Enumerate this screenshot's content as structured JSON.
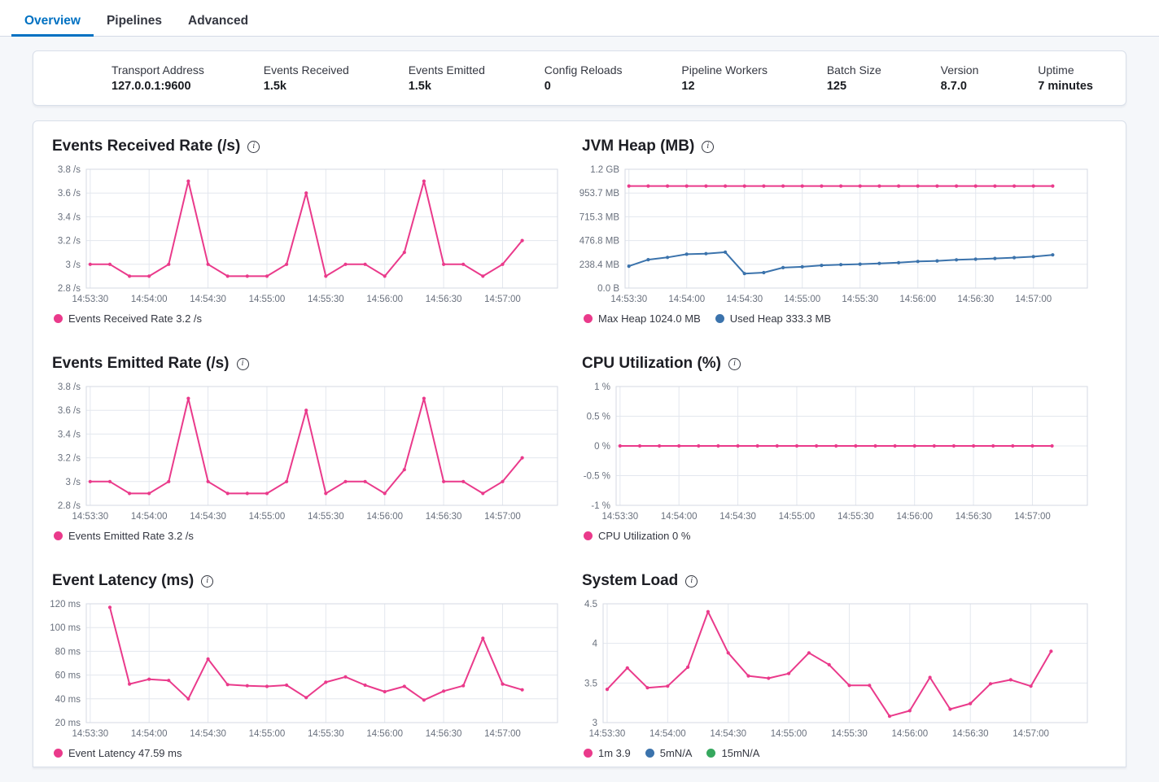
{
  "tabs": [
    {
      "label": "Overview",
      "active": true
    },
    {
      "label": "Pipelines",
      "active": false
    },
    {
      "label": "Advanced",
      "active": false
    }
  ],
  "summary": {
    "items": [
      {
        "label": "Transport Address",
        "value": "127.0.0.1:9600"
      },
      {
        "label": "Events Received",
        "value": "1.5k"
      },
      {
        "label": "Events Emitted",
        "value": "1.5k"
      },
      {
        "label": "Config Reloads",
        "value": "0"
      },
      {
        "label": "Pipeline Workers",
        "value": "12"
      },
      {
        "label": "Batch Size",
        "value": "125"
      },
      {
        "label": "Version",
        "value": "8.7.0"
      },
      {
        "label": "Uptime",
        "value": "7 minutes"
      }
    ]
  },
  "colors": {
    "accent_blue": "#0071c2",
    "line_pink": "#ea3a8b",
    "line_blue": "#3b73ac",
    "dot_green": "#36a85e",
    "grid": "#e3e7ee",
    "plot_border": "#d4dae3"
  },
  "chart_data": [
    {
      "type": "line",
      "title": "Events Received Rate (/s)",
      "x_ticks": [
        "14:53:30",
        "14:54:00",
        "14:54:30",
        "14:55:00",
        "14:55:30",
        "14:56:00",
        "14:56:30",
        "14:57:00"
      ],
      "ylim": [
        2.8,
        3.8
      ],
      "y_tick_values": [
        3.8,
        3.6,
        3.4,
        3.2,
        3.0,
        2.8
      ],
      "y_tick_labels": [
        "3.8 /s",
        "3.6 /s",
        "3.4 /s",
        "3.2 /s",
        "3 /s",
        "2.8 /s"
      ],
      "series": [
        {
          "name": "Events Received Rate",
          "color": "#ea3a8b",
          "start_s": 0,
          "step_s": 10,
          "values": [
            3.0,
            3.0,
            2.9,
            2.9,
            3.0,
            3.7,
            3.0,
            2.9,
            2.9,
            2.9,
            3.0,
            3.6,
            2.9,
            3.0,
            3.0,
            2.9,
            3.1,
            3.7,
            3.0,
            3.0,
            2.9,
            3.0,
            3.2
          ]
        }
      ],
      "legend": [
        {
          "label": "Events Received Rate 3.2 /s",
          "color": "#ea3a8b"
        }
      ]
    },
    {
      "type": "line",
      "title": "JVM Heap (MB)",
      "x_ticks": [
        "14:53:30",
        "14:54:00",
        "14:54:30",
        "14:55:00",
        "14:55:30",
        "14:56:00",
        "14:56:30",
        "14:57:00"
      ],
      "ylim": [
        0,
        1192.1
      ],
      "y_tick_values": [
        1192.1,
        953.7,
        715.3,
        476.8,
        238.4,
        0
      ],
      "y_tick_labels": [
        "1.2 GB",
        "953.7 MB",
        "715.3 MB",
        "476.8 MB",
        "238.4 MB",
        "0.0 B"
      ],
      "series": [
        {
          "name": "Max Heap",
          "color": "#ea3a8b",
          "start_s": 0,
          "step_s": 10,
          "values": [
            1024,
            1024,
            1024,
            1024,
            1024,
            1024,
            1024,
            1024,
            1024,
            1024,
            1024,
            1024,
            1024,
            1024,
            1024,
            1024,
            1024,
            1024,
            1024,
            1024,
            1024,
            1024,
            1024
          ]
        },
        {
          "name": "Used Heap",
          "color": "#3b73ac",
          "start_s": 0,
          "step_s": 10,
          "values": [
            220,
            285,
            308,
            340,
            345,
            360,
            145,
            155,
            205,
            213,
            228,
            235,
            240,
            247,
            255,
            267,
            273,
            283,
            290,
            297,
            305,
            315,
            333.3
          ]
        }
      ],
      "legend": [
        {
          "label": "Max Heap 1024.0 MB",
          "color": "#ea3a8b"
        },
        {
          "label": "Used Heap 333.3 MB",
          "color": "#3b73ac"
        }
      ]
    },
    {
      "type": "line",
      "title": "Events Emitted Rate (/s)",
      "x_ticks": [
        "14:53:30",
        "14:54:00",
        "14:54:30",
        "14:55:00",
        "14:55:30",
        "14:56:00",
        "14:56:30",
        "14:57:00"
      ],
      "ylim": [
        2.8,
        3.8
      ],
      "y_tick_values": [
        3.8,
        3.6,
        3.4,
        3.2,
        3.0,
        2.8
      ],
      "y_tick_labels": [
        "3.8 /s",
        "3.6 /s",
        "3.4 /s",
        "3.2 /s",
        "3 /s",
        "2.8 /s"
      ],
      "series": [
        {
          "name": "Events Emitted Rate",
          "color": "#ea3a8b",
          "start_s": 0,
          "step_s": 10,
          "values": [
            3.0,
            3.0,
            2.9,
            2.9,
            3.0,
            3.7,
            3.0,
            2.9,
            2.9,
            2.9,
            3.0,
            3.6,
            2.9,
            3.0,
            3.0,
            2.9,
            3.1,
            3.7,
            3.0,
            3.0,
            2.9,
            3.0,
            3.2
          ]
        }
      ],
      "legend": [
        {
          "label": "Events Emitted Rate 3.2 /s",
          "color": "#ea3a8b"
        }
      ]
    },
    {
      "type": "line",
      "title": "CPU Utilization (%)",
      "x_ticks": [
        "14:53:30",
        "14:54:00",
        "14:54:30",
        "14:55:00",
        "14:55:30",
        "14:56:00",
        "14:56:30",
        "14:57:00"
      ],
      "ylim": [
        -1,
        1
      ],
      "y_tick_values": [
        1,
        0.5,
        0,
        -0.5,
        -1
      ],
      "y_tick_labels": [
        "1 %",
        "0.5 %",
        "0 %",
        "-0.5 %",
        "-1 %"
      ],
      "series": [
        {
          "name": "CPU Utilization",
          "color": "#ea3a8b",
          "start_s": 0,
          "step_s": 10,
          "values": [
            0,
            0,
            0,
            0,
            0,
            0,
            0,
            0,
            0,
            0,
            0,
            0,
            0,
            0,
            0,
            0,
            0,
            0,
            0,
            0,
            0,
            0,
            0
          ]
        }
      ],
      "legend": [
        {
          "label": "CPU Utilization 0 %",
          "color": "#ea3a8b"
        }
      ]
    },
    {
      "type": "line",
      "title": "Event Latency (ms)",
      "x_ticks": [
        "14:53:30",
        "14:54:00",
        "14:54:30",
        "14:55:00",
        "14:55:30",
        "14:56:00",
        "14:56:30",
        "14:57:00"
      ],
      "ylim": [
        20,
        120
      ],
      "y_tick_values": [
        120,
        100,
        80,
        60,
        40,
        20
      ],
      "y_tick_labels": [
        "120 ms",
        "100 ms",
        "80 ms",
        "60 ms",
        "40 ms",
        "20 ms"
      ],
      "series": [
        {
          "name": "Event Latency",
          "color": "#ea3a8b",
          "start_s": 10,
          "step_s": 10,
          "values": [
            117,
            52.5,
            56.5,
            55.5,
            40,
            73.5,
            52,
            51,
            50.5,
            51.5,
            41,
            54,
            58.5,
            51.5,
            46,
            50.5,
            39,
            46.5,
            51,
            91,
            52.5,
            47.59
          ]
        }
      ],
      "legend": [
        {
          "label": "Event Latency 47.59 ms",
          "color": "#ea3a8b"
        }
      ]
    },
    {
      "type": "line",
      "title": "System Load",
      "x_ticks": [
        "14:53:30",
        "14:54:00",
        "14:54:30",
        "14:55:00",
        "14:55:30",
        "14:56:00",
        "14:56:30",
        "14:57:00"
      ],
      "ylim": [
        3,
        4.5
      ],
      "y_tick_values": [
        4.5,
        4,
        3.5,
        3
      ],
      "y_tick_labels": [
        "4.5",
        "4",
        "3.5",
        "3"
      ],
      "series": [
        {
          "name": "1m",
          "color": "#ea3a8b",
          "start_s": 0,
          "step_s": 10,
          "values": [
            3.42,
            3.69,
            3.44,
            3.46,
            3.7,
            4.4,
            3.88,
            3.59,
            3.56,
            3.62,
            3.88,
            3.73,
            3.47,
            3.47,
            3.08,
            3.15,
            3.57,
            3.17,
            3.24,
            3.49,
            3.54,
            3.46,
            3.9
          ]
        }
      ],
      "legend": [
        {
          "label": "1m 3.9",
          "color": "#ea3a8b"
        },
        {
          "label": "5mN/A",
          "color": "#3b73ac"
        },
        {
          "label": "15mN/A",
          "color": "#36a85e"
        }
      ]
    }
  ]
}
